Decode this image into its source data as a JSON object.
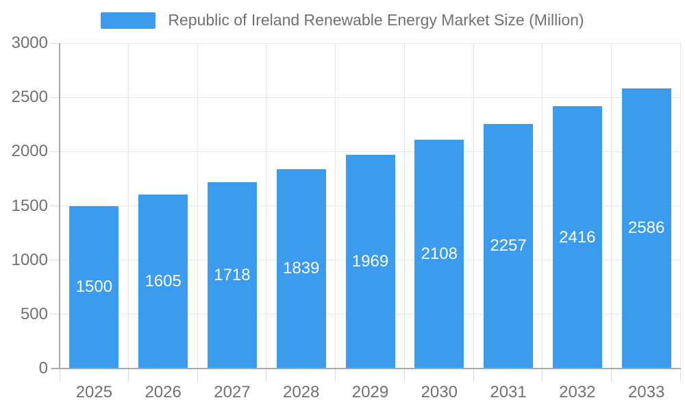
{
  "chart_data": {
    "type": "bar",
    "categories": [
      "2025",
      "2026",
      "2027",
      "2028",
      "2029",
      "2030",
      "2031",
      "2032",
      "2033"
    ],
    "series": [
      {
        "name": "Republic of Ireland Renewable Energy Market Size (Million)",
        "values": [
          1500,
          1605,
          1718,
          1839,
          1969,
          2108,
          2257,
          2416,
          2586
        ]
      }
    ],
    "value_labels": [
      "1500",
      "1605",
      "1718",
      "1839",
      "1969",
      "2108",
      "2257",
      "2416",
      "2586"
    ],
    "xlabel": "",
    "ylabel": "",
    "ylim": [
      0,
      3000
    ],
    "yticks": [
      "0",
      "500",
      "1000",
      "1500",
      "2000",
      "2500",
      "3000"
    ],
    "ytick_values": [
      0,
      500,
      1000,
      1500,
      2000,
      2500,
      3000
    ],
    "grid": true,
    "legend_position": "top",
    "value_label_position": "inside-center"
  },
  "colors": {
    "bar": "#3b9bee",
    "axis": "#a8a8a8",
    "grid": "#e6e6e6",
    "tick": "#d9d9d9",
    "text": "#707070",
    "value_label": "#ffffff",
    "background": "#ffffff"
  }
}
